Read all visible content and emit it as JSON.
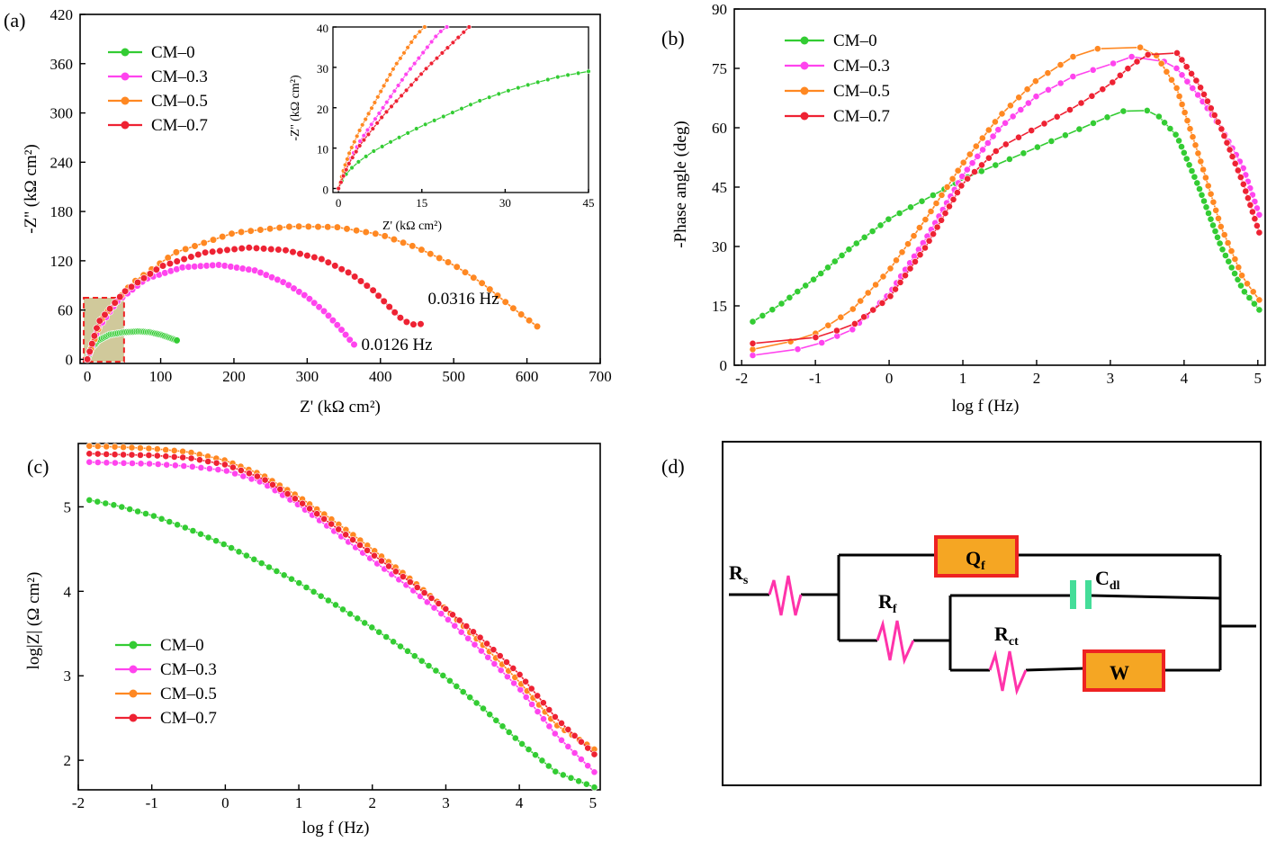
{
  "colors": {
    "CM-0": "#33cc33",
    "CM-0.3": "#ff44ee",
    "CM-0.5": "#ff8822",
    "CM-0.7": "#ee2233"
  },
  "panels": {
    "a": {
      "label": "(a)",
      "xlabel": "Z' (kΩ cm²)",
      "ylabel": "-Z'' (kΩ cm²)",
      "annotations": [
        "0.0126 Hz",
        "0.0316 Hz"
      ],
      "inset": {
        "xlabel": "Z' (kΩ cm²)",
        "ylabel": "-Z'' (kΩ cm²)"
      }
    },
    "b": {
      "label": "(b)",
      "xlabel": "log f (Hz)",
      "ylabel": "-Phase angle (deg)"
    },
    "c": {
      "label": "(c)",
      "xlabel": "log f (Hz)",
      "ylabel": "log|Z| (Ω cm²)"
    },
    "d": {
      "label": "(d)",
      "labels": {
        "rs": "R",
        "rs_sub": "s",
        "qf": "Q",
        "qf_sub": "f",
        "cdl": "C",
        "cdl_sub": "dl",
        "rf": "R",
        "rf_sub": "f",
        "rct": "R",
        "rct_sub": "ct",
        "w": "W"
      }
    }
  },
  "chart_data": [
    {
      "type": "scatter",
      "panel": "a",
      "title": "",
      "xlabel": "Z' (kΩ cm²)",
      "ylabel": "-Z'' (kΩ cm²)",
      "xlim": [
        -10,
        700
      ],
      "ylim": [
        -5,
        420
      ],
      "xticks": [
        0,
        100,
        200,
        300,
        400,
        500,
        600,
        700
      ],
      "yticks": [
        0,
        60,
        120,
        180,
        240,
        300,
        360,
        420
      ],
      "legend": "top-left",
      "series": [
        {
          "name": "CM–0",
          "x": [
            0,
            5,
            15,
            30,
            50,
            70,
            85,
            100,
            113,
            122
          ],
          "y": [
            0,
            13,
            23,
            30,
            33,
            34,
            33,
            30,
            26,
            23
          ]
        },
        {
          "name": "CM–0.3",
          "x": [
            0,
            15,
            40,
            80,
            130,
            180,
            230,
            270,
            300,
            325,
            345,
            358,
            364
          ],
          "y": [
            0,
            38,
            70,
            98,
            112,
            115,
            108,
            93,
            76,
            57,
            38,
            24,
            18
          ]
        },
        {
          "name": "CM–0.5",
          "x": [
            0,
            20,
            60,
            120,
            200,
            280,
            340,
            400,
            450,
            500,
            540,
            580,
            614
          ],
          "y": [
            0,
            50,
            92,
            130,
            154,
            162,
            161,
            152,
            136,
            115,
            92,
            63,
            40
          ]
        },
        {
          "name": "CM–0.7",
          "x": [
            0,
            15,
            50,
            100,
            160,
            220,
            270,
            320,
            360,
            390,
            410,
            425,
            440,
            450,
            455
          ],
          "y": [
            0,
            45,
            82,
            113,
            130,
            136,
            133,
            122,
            104,
            84,
            66,
            52,
            43,
            42,
            43
          ]
        }
      ],
      "annotations": [
        {
          "text": "0.0126 Hz",
          "x": 364,
          "y": 18
        },
        {
          "text": "0.0316 Hz",
          "x": 455,
          "y": 43
        }
      ],
      "highlight_region": {
        "x": [
          -5,
          50
        ],
        "y": [
          -3,
          75
        ]
      }
    },
    {
      "type": "scatter",
      "panel": "a-inset",
      "xlabel": "Z' (kΩ cm²)",
      "ylabel": "-Z'' (kΩ cm²)",
      "xlim": [
        -1,
        45
      ],
      "ylim": [
        -1,
        40
      ],
      "xticks": [
        0,
        15,
        30,
        45
      ],
      "yticks": [
        0,
        10,
        20,
        30,
        40
      ],
      "series": [
        {
          "name": "CM–0",
          "x": [
            0,
            1,
            3,
            6,
            10,
            15,
            20,
            25,
            30,
            35,
            40,
            45
          ],
          "y": [
            0,
            3,
            6,
            9,
            12,
            15.5,
            18.5,
            21.5,
            24,
            26,
            27.8,
            29
          ]
        },
        {
          "name": "CM–0.3",
          "x": [
            0,
            1,
            2,
            4,
            6,
            8,
            10,
            12,
            14,
            16,
            18,
            19.5
          ],
          "y": [
            0,
            4,
            7,
            12,
            16,
            20,
            24,
            28,
            31.5,
            35,
            38.5,
            40
          ]
        },
        {
          "name": "CM–0.5",
          "x": [
            0,
            1,
            2,
            4,
            6,
            8,
            10,
            12,
            14,
            15.5
          ],
          "y": [
            0,
            5,
            9,
            15,
            20,
            25,
            30,
            34,
            38,
            40
          ]
        },
        {
          "name": "CM–0.7",
          "x": [
            0,
            1,
            2,
            4,
            6,
            8,
            10,
            13,
            16,
            19,
            22,
            23.5
          ],
          "y": [
            0,
            3.5,
            6.5,
            11,
            14.5,
            18,
            21,
            25.5,
            30,
            34,
            38,
            40
          ]
        }
      ]
    },
    {
      "type": "line",
      "panel": "b",
      "xlabel": "log f (Hz)",
      "ylabel": "-Phase angle (deg)",
      "xlim": [
        -2.1,
        5.1
      ],
      "ylim": [
        0,
        90
      ],
      "xticks": [
        -2,
        -1,
        0,
        1,
        2,
        3,
        4,
        5
      ],
      "yticks": [
        0,
        15,
        30,
        45,
        60,
        75,
        90
      ],
      "legend": "top-left",
      "series": [
        {
          "name": "CM–0",
          "x": [
            -1.85,
            -1.5,
            -1,
            -0.5,
            0,
            0.5,
            1,
            1.5,
            2,
            2.5,
            3,
            3.3,
            3.6,
            3.9,
            4.2,
            4.5,
            4.8,
            5.02
          ],
          "y": [
            11,
            15,
            22,
            30,
            37,
            42,
            47,
            51,
            55,
            59,
            63,
            65,
            64,
            58,
            45,
            30,
            19,
            14
          ]
        },
        {
          "name": "CM–0.3",
          "x": [
            -1.85,
            -1.5,
            -1,
            -0.5,
            0,
            0.5,
            1,
            1.5,
            2,
            2.5,
            3,
            3.3,
            3.6,
            3.9,
            4.2,
            4.5,
            4.8,
            5.02
          ],
          "y": [
            2.5,
            3,
            5,
            9,
            18,
            32,
            48,
            60,
            68,
            73,
            76,
            78,
            78,
            75,
            68,
            60,
            50,
            38
          ]
        },
        {
          "name": "CM–0.5",
          "x": [
            -1.85,
            -1.5,
            -1,
            -0.5,
            0,
            0.5,
            1,
            1.5,
            2,
            2.5,
            3,
            3.3,
            3.6,
            3.9,
            4.2,
            4.5,
            4.8,
            5.02
          ],
          "y": [
            4,
            5,
            8,
            14,
            24,
            37,
            51,
            63,
            72,
            78,
            81,
            81,
            79,
            70,
            53,
            35,
            22,
            16.5
          ]
        },
        {
          "name": "CM–0.7",
          "x": [
            -1.85,
            -1.5,
            -1,
            -0.5,
            0,
            0.5,
            1,
            1.5,
            2,
            2.5,
            3,
            3.3,
            3.6,
            3.9,
            4.2,
            4.5,
            4.8,
            5.02
          ],
          "y": [
            5.5,
            6,
            7,
            10,
            17,
            30,
            46,
            55,
            60,
            65,
            71,
            76,
            79.5,
            79,
            71,
            60,
            46,
            33.5
          ]
        }
      ]
    },
    {
      "type": "line",
      "panel": "c",
      "xlabel": "log f (Hz)",
      "ylabel": "log|Z| (Ω cm²)",
      "xlim": [
        -2,
        5.1
      ],
      "ylim": [
        1.65,
        5.75
      ],
      "xticks": [
        -2,
        -1,
        0,
        1,
        2,
        3,
        4,
        5
      ],
      "yticks": [
        2,
        3,
        4,
        5
      ],
      "legend": "bottom-left",
      "series": [
        {
          "name": "CM–0",
          "x": [
            -1.85,
            -1.5,
            -1,
            -0.5,
            0,
            0.5,
            1,
            1.5,
            2,
            2.5,
            3,
            3.5,
            4,
            4.5,
            5.02
          ],
          "y": [
            5.08,
            5.02,
            4.9,
            4.74,
            4.55,
            4.33,
            4.1,
            3.84,
            3.57,
            3.28,
            2.98,
            2.62,
            2.22,
            1.86,
            1.68
          ]
        },
        {
          "name": "CM–0.3",
          "x": [
            -1.85,
            -1.5,
            -1,
            -0.5,
            0,
            0.5,
            1,
            1.5,
            2,
            2.5,
            3,
            3.5,
            4,
            4.5,
            5.02
          ],
          "y": [
            5.53,
            5.52,
            5.51,
            5.48,
            5.43,
            5.29,
            5.02,
            4.7,
            4.37,
            4.05,
            3.69,
            3.28,
            2.85,
            2.3,
            1.86
          ]
        },
        {
          "name": "CM–0.5",
          "x": [
            -1.85,
            -1.5,
            -1,
            -0.5,
            0,
            0.5,
            1,
            1.5,
            2,
            2.5,
            3,
            3.5,
            4,
            4.5,
            5.02
          ],
          "y": [
            5.72,
            5.71,
            5.69,
            5.65,
            5.55,
            5.38,
            5.12,
            4.82,
            4.5,
            4.16,
            3.79,
            3.37,
            2.93,
            2.42,
            2.13
          ]
        },
        {
          "name": "CM–0.7",
          "x": [
            -1.85,
            -1.5,
            -1,
            -0.5,
            0,
            0.5,
            1,
            1.5,
            2,
            2.5,
            3,
            3.5,
            4,
            4.5,
            5.02
          ],
          "y": [
            5.63,
            5.62,
            5.61,
            5.58,
            5.5,
            5.34,
            5.07,
            4.76,
            4.44,
            4.12,
            3.79,
            3.43,
            3.02,
            2.5,
            2.07
          ]
        }
      ]
    }
  ]
}
